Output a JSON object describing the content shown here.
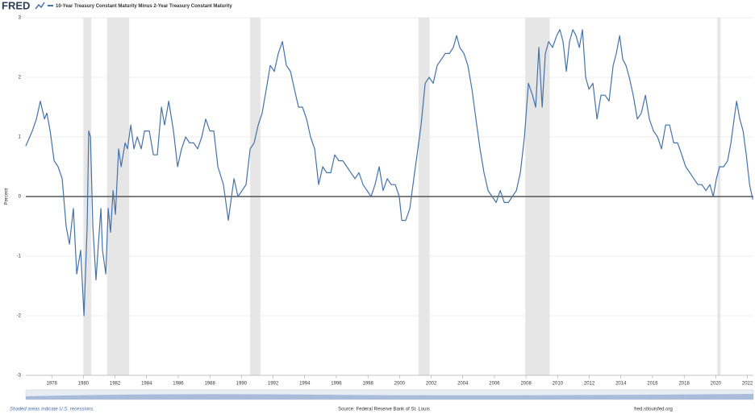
{
  "chart_data": {
    "type": "line",
    "logo": "FRED",
    "y_label": "Percent",
    "note": "Shaded areas indicate U.S. recessions.",
    "source": "Source: Federal Reserve Bank of St. Louis",
    "site": "fred.stlouisfed.org",
    "grid": true,
    "xlim": [
      1976.36,
      2022.38
    ],
    "xticks": [
      1978,
      1980,
      1982,
      1984,
      1986,
      1988,
      1990,
      1992,
      1994,
      1996,
      1998,
      2000,
      2002,
      2004,
      2006,
      2008,
      2010,
      2012,
      2014,
      2016,
      2018,
      2020,
      2022
    ],
    "ylim": [
      -3,
      3
    ],
    "yticks": [
      -3,
      -2,
      -1,
      0,
      1,
      2,
      3
    ],
    "recession_color": "#e6e6e6",
    "recessions": [
      [
        1980.0,
        1980.5
      ],
      [
        1981.5,
        1982.9
      ],
      [
        1990.55,
        1991.2
      ],
      [
        2001.2,
        2001.9
      ],
      [
        2007.95,
        2009.5
      ],
      [
        2020.1,
        2020.3
      ]
    ],
    "x": [
      1976.36,
      1976.77,
      1977.03,
      1977.28,
      1977.54,
      1977.69,
      1977.9,
      1978.15,
      1978.4,
      1978.66,
      1978.91,
      1979.12,
      1979.37,
      1979.58,
      1979.83,
      1980.04,
      1980.24,
      1980.34,
      1980.45,
      1980.6,
      1980.8,
      1980.95,
      1981.11,
      1981.21,
      1981.42,
      1981.57,
      1981.72,
      1981.88,
      1982.03,
      1982.23,
      1982.39,
      1982.64,
      1982.79,
      1983.0,
      1983.2,
      1983.41,
      1983.66,
      1983.87,
      1984.17,
      1984.43,
      1984.68,
      1984.94,
      1985.14,
      1985.4,
      1985.7,
      1985.96,
      1986.21,
      1986.47,
      1986.72,
      1986.98,
      1987.23,
      1987.49,
      1987.74,
      1988.0,
      1988.25,
      1988.51,
      1988.86,
      1989.17,
      1989.37,
      1989.53,
      1989.78,
      1990.04,
      1990.29,
      1990.55,
      1990.8,
      1991.06,
      1991.31,
      1991.57,
      1991.82,
      1992.08,
      1992.33,
      1992.59,
      1992.84,
      1993.1,
      1993.35,
      1993.61,
      1993.86,
      1994.12,
      1994.37,
      1994.63,
      1994.88,
      1995.14,
      1995.39,
      1995.65,
      1995.9,
      1996.16,
      1996.41,
      1996.67,
      1996.92,
      1997.18,
      1997.43,
      1997.69,
      1997.94,
      1998.2,
      1998.45,
      1998.71,
      1998.96,
      1999.22,
      1999.47,
      1999.73,
      1999.98,
      2000.14,
      2000.39,
      2000.65,
      2000.9,
      2001.16,
      2001.36,
      2001.62,
      2001.87,
      2002.13,
      2002.38,
      2002.64,
      2002.89,
      2003.15,
      2003.4,
      2003.61,
      2003.81,
      2004.07,
      2004.32,
      2004.58,
      2004.83,
      2005.09,
      2005.34,
      2005.6,
      2005.86,
      2006.11,
      2006.37,
      2006.62,
      2006.88,
      2007.13,
      2007.39,
      2007.64,
      2007.9,
      2008.15,
      2008.41,
      2008.61,
      2008.81,
      2009.02,
      2009.22,
      2009.43,
      2009.68,
      2009.94,
      2010.14,
      2010.34,
      2010.55,
      2010.75,
      2010.96,
      2011.16,
      2011.37,
      2011.57,
      2011.77,
      2011.98,
      2012.23,
      2012.49,
      2012.74,
      2013.0,
      2013.25,
      2013.51,
      2013.71,
      2013.92,
      2014.12,
      2014.32,
      2014.53,
      2014.78,
      2015.04,
      2015.29,
      2015.55,
      2015.8,
      2016.06,
      2016.32,
      2016.57,
      2016.83,
      2017.08,
      2017.34,
      2017.59,
      2017.85,
      2018.1,
      2018.36,
      2018.61,
      2018.87,
      2019.12,
      2019.38,
      2019.63,
      2019.84,
      2020.04,
      2020.24,
      2020.5,
      2020.75,
      2020.96,
      2021.16,
      2021.32,
      2021.52,
      2021.73,
      2021.93,
      2022.14,
      2022.34
    ],
    "series": [
      {
        "name": "10-Year Treasury Constant Maturity Minus 2-Year Treasury Constant Maturity",
        "color": "#4572a7",
        "values": [
          0.85,
          1.1,
          1.3,
          1.6,
          1.3,
          1.4,
          1.1,
          0.6,
          0.5,
          0.3,
          -0.5,
          -0.8,
          -0.2,
          -1.3,
          -0.9,
          -2.0,
          -0.5,
          1.1,
          1.0,
          -0.5,
          -1.4,
          -0.8,
          -0.2,
          -0.9,
          -1.3,
          -0.2,
          -0.6,
          0.1,
          -0.3,
          0.8,
          0.5,
          0.9,
          0.8,
          1.2,
          0.8,
          1.0,
          0.8,
          1.1,
          1.1,
          0.7,
          0.7,
          1.5,
          1.2,
          1.6,
          1.1,
          0.5,
          0.8,
          1.0,
          0.9,
          0.9,
          0.8,
          1.0,
          1.3,
          1.1,
          1.1,
          0.5,
          0.2,
          -0.4,
          0.0,
          0.3,
          0.0,
          0.1,
          0.2,
          0.8,
          0.9,
          1.2,
          1.4,
          1.8,
          2.2,
          2.1,
          2.4,
          2.6,
          2.2,
          2.1,
          1.8,
          1.5,
          1.5,
          1.3,
          1.0,
          0.8,
          0.2,
          0.5,
          0.4,
          0.4,
          0.7,
          0.6,
          0.6,
          0.5,
          0.4,
          0.3,
          0.4,
          0.2,
          0.1,
          0.0,
          0.2,
          0.5,
          0.1,
          0.3,
          0.2,
          0.2,
          0.0,
          -0.4,
          -0.4,
          -0.2,
          0.3,
          0.8,
          1.2,
          1.9,
          2.0,
          1.9,
          2.2,
          2.3,
          2.4,
          2.4,
          2.5,
          2.7,
          2.5,
          2.4,
          2.2,
          1.8,
          1.3,
          0.8,
          0.4,
          0.1,
          0.0,
          -0.1,
          0.1,
          -0.1,
          -0.1,
          0.0,
          0.1,
          0.4,
          1.0,
          1.9,
          1.7,
          1.5,
          2.5,
          1.5,
          2.4,
          2.6,
          2.5,
          2.7,
          2.8,
          2.6,
          2.1,
          2.6,
          2.8,
          2.7,
          2.5,
          2.8,
          2.0,
          1.8,
          1.9,
          1.3,
          1.7,
          1.7,
          1.6,
          2.2,
          2.4,
          2.7,
          2.3,
          2.2,
          2.0,
          1.7,
          1.3,
          1.4,
          1.7,
          1.3,
          1.1,
          1.0,
          0.8,
          1.2,
          1.2,
          0.9,
          0.9,
          0.7,
          0.5,
          0.4,
          0.3,
          0.2,
          0.2,
          0.1,
          0.2,
          0.0,
          0.3,
          0.5,
          0.5,
          0.6,
          0.9,
          1.3,
          1.6,
          1.3,
          1.1,
          0.7,
          0.2,
          -0.05
        ]
      }
    ]
  }
}
